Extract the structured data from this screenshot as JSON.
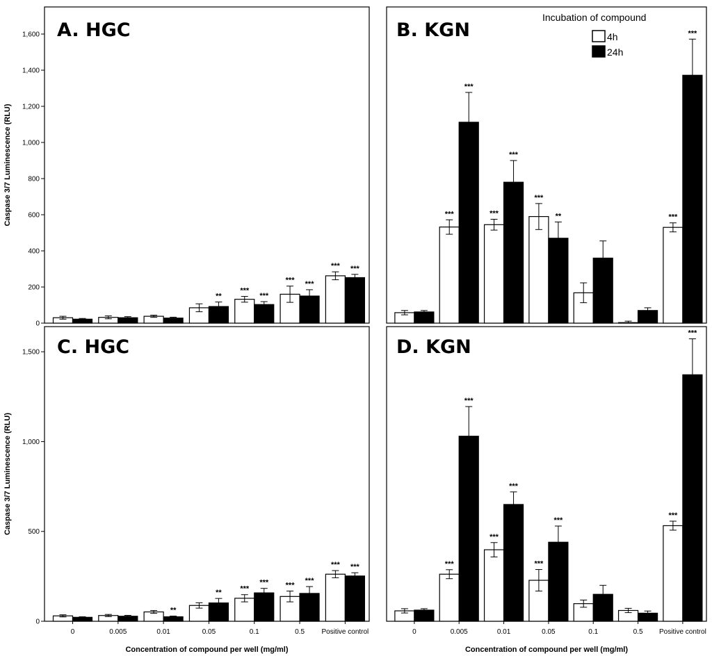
{
  "chart_data": [
    {
      "id": "A",
      "type": "bar",
      "title": "A. HGC",
      "categories": [
        "0",
        "0.005",
        "0.01",
        "0.05",
        "0.1",
        "0.5",
        "Positive control"
      ],
      "series": [
        {
          "name": "4h",
          "color": "#ffffff",
          "values": [
            30,
            32,
            38,
            85,
            132,
            160,
            262
          ],
          "errors": [
            8,
            8,
            6,
            22,
            16,
            45,
            22
          ],
          "sig": [
            "",
            "",
            "",
            "",
            "***",
            "***",
            "***"
          ]
        },
        {
          "name": "24h",
          "color": "#000000",
          "values": [
            22,
            30,
            28,
            92,
            103,
            150,
            252
          ],
          "errors": [
            4,
            6,
            5,
            25,
            16,
            35,
            18
          ],
          "sig": [
            "",
            "",
            "",
            "**",
            "***",
            "***",
            "***"
          ]
        }
      ],
      "ylabel": "Caspase 3/7 Luminescence (RLU)",
      "xlabel": "",
      "ylim": [
        0,
        1750
      ],
      "yticks": [
        0,
        200,
        400,
        600,
        800,
        1000,
        1200,
        1400,
        1600
      ],
      "ytick_labels": [
        "0",
        "200",
        "400",
        "600",
        "800",
        "1,000",
        "1,200",
        "1,400",
        "1,600"
      ],
      "show_xticks": false,
      "legend": false
    },
    {
      "id": "B",
      "type": "bar",
      "title": "B. KGN",
      "categories": [
        "0",
        "0.005",
        "0.01",
        "0.05",
        "0.1",
        "0.5",
        "Positive control"
      ],
      "series": [
        {
          "name": "4h",
          "color": "#ffffff",
          "values": [
            58,
            532,
            545,
            590,
            168,
            3,
            530
          ],
          "errors": [
            12,
            40,
            30,
            72,
            55,
            8,
            25
          ],
          "sig": [
            "",
            "***",
            "***",
            "***",
            "",
            "",
            "***"
          ]
        },
        {
          "name": "24h",
          "color": "#000000",
          "values": [
            62,
            1112,
            780,
            470,
            360,
            70,
            1372
          ],
          "errors": [
            8,
            165,
            120,
            90,
            95,
            15,
            200
          ],
          "sig": [
            "",
            "***",
            "***",
            "**",
            "",
            "",
            "***"
          ]
        }
      ],
      "ylabel": "",
      "xlabel": "",
      "ylim": [
        0,
        1750
      ],
      "yticks": [],
      "ytick_labels": [],
      "show_xticks": false,
      "legend": true
    },
    {
      "id": "C",
      "type": "bar",
      "title": "C. HGC",
      "categories": [
        "0",
        "0.005",
        "0.01",
        "0.05",
        "0.1",
        "0.5",
        "Positive control"
      ],
      "series": [
        {
          "name": "4h",
          "color": "#ffffff",
          "values": [
            30,
            32,
            52,
            88,
            128,
            138,
            262
          ],
          "errors": [
            6,
            6,
            8,
            15,
            20,
            30,
            20
          ],
          "sig": [
            "",
            "",
            "",
            "",
            "***",
            "***",
            "***"
          ]
        },
        {
          "name": "24h",
          "color": "#000000",
          "values": [
            22,
            28,
            25,
            102,
            158,
            155,
            252
          ],
          "errors": [
            3,
            5,
            4,
            25,
            25,
            38,
            18
          ],
          "sig": [
            "",
            "",
            "**",
            "**",
            "***",
            "***",
            "***"
          ]
        }
      ],
      "ylabel": "Caspase 3/7 Luminescence (RLU)",
      "xlabel": "Concentration of compound per well (mg/ml)",
      "ylim": [
        0,
        1640
      ],
      "yticks": [
        0,
        500,
        1000,
        1500
      ],
      "ytick_labels": [
        "0",
        "500",
        "1,000",
        "1,500"
      ],
      "show_xticks": true,
      "legend": false
    },
    {
      "id": "D",
      "type": "bar",
      "title": "D. KGN",
      "categories": [
        "0",
        "0.005",
        "0.01",
        "0.05",
        "0.1",
        "0.5",
        "Positive control"
      ],
      "series": [
        {
          "name": "4h",
          "color": "#ffffff",
          "values": [
            58,
            262,
            398,
            228,
            98,
            60,
            532
          ],
          "errors": [
            12,
            25,
            40,
            60,
            20,
            12,
            25
          ],
          "sig": [
            "",
            "***",
            "***",
            "***",
            "",
            "",
            "***"
          ]
        },
        {
          "name": "24h",
          "color": "#000000",
          "values": [
            62,
            1030,
            650,
            440,
            150,
            45,
            1372
          ],
          "errors": [
            8,
            165,
            70,
            90,
            50,
            12,
            200
          ],
          "sig": [
            "",
            "***",
            "***",
            "***",
            "",
            "",
            "***"
          ]
        }
      ],
      "ylabel": "",
      "xlabel": "Concentration of compound per well (mg/ml)",
      "ylim": [
        0,
        1640
      ],
      "yticks": [],
      "ytick_labels": [],
      "show_xticks": true,
      "legend": false
    }
  ],
  "legend": {
    "title": "Incubation of compound",
    "items": [
      {
        "label": "4h",
        "color": "#ffffff"
      },
      {
        "label": "24h",
        "color": "#000000"
      }
    ]
  }
}
